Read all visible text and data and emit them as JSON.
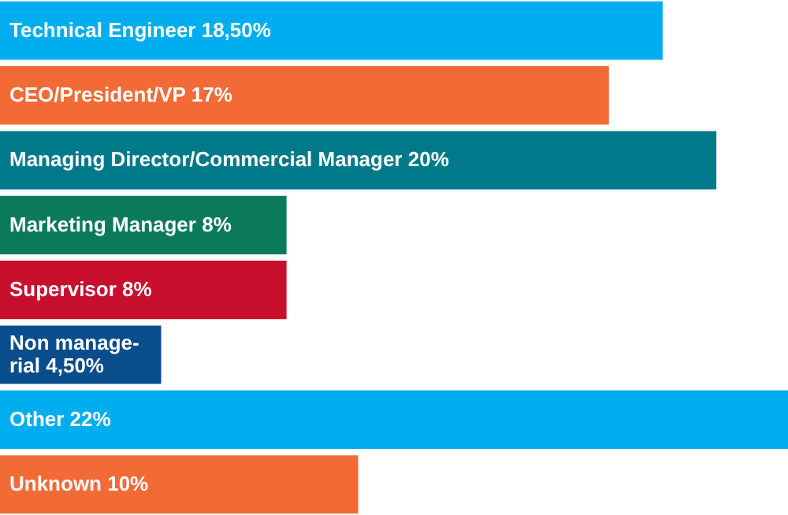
{
  "chart_data": {
    "type": "bar",
    "orientation": "horizontal",
    "categories": [
      "Technical Engineer",
      "CEO/President/VP",
      "Managing Director/Commercial Manager",
      "Marketing Manager",
      "Supervisor",
      "Non manage-\nrial",
      "Other",
      "Unknown"
    ],
    "values": [
      18.5,
      17,
      20,
      8,
      8,
      4.5,
      22,
      10
    ],
    "value_labels": [
      "18,50%",
      "17%",
      "20%",
      "8%",
      "8%",
      "4,50%",
      "22%",
      "10%"
    ],
    "colors": [
      "#00aeef",
      "#f26a36",
      "#007a8a",
      "#0b7a5a",
      "#c8102e",
      "#0a4d8c",
      "#00aeef",
      "#f26a36"
    ]
  }
}
